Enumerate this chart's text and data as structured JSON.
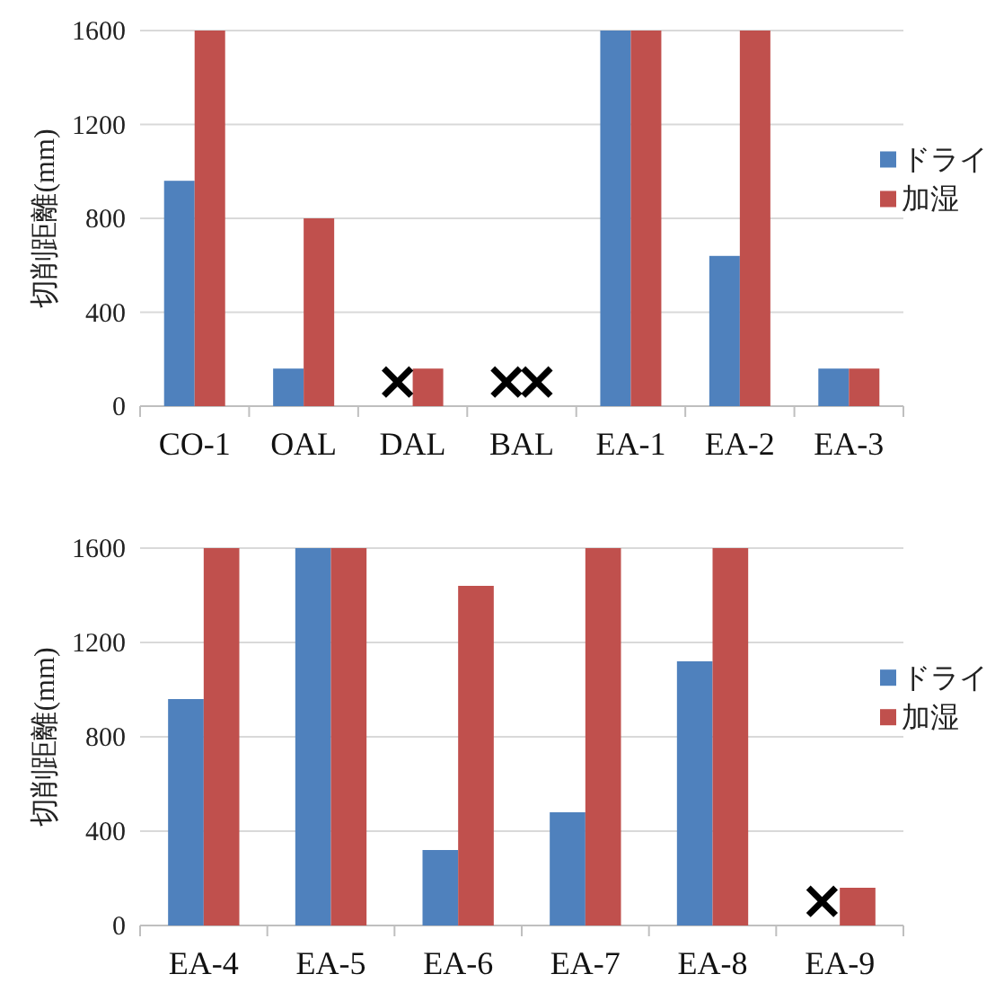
{
  "chart_data": [
    {
      "type": "bar",
      "categories": [
        "CO-1",
        "OAL",
        "DAL",
        "BAL",
        "EA-1",
        "EA-2",
        "EA-3"
      ],
      "series": [
        {
          "name": "ドライ",
          "color": "#4f81bd",
          "values": [
            960,
            160,
            null,
            null,
            1600,
            640,
            160
          ]
        },
        {
          "name": "加湿",
          "color": "#c0504d",
          "values": [
            1600,
            800,
            160,
            null,
            1600,
            1600,
            160
          ]
        }
      ],
      "ylabel": "切削距離(mm)",
      "ylim": [
        0,
        1600
      ],
      "yticks": [
        0,
        400,
        800,
        1200,
        1600
      ],
      "grid": "y",
      "legend": "right",
      "annotations": [
        "×",
        "×",
        "×"
      ]
    },
    {
      "type": "bar",
      "categories": [
        "EA-4",
        "EA-5",
        "EA-6",
        "EA-7",
        "EA-8",
        "EA-9"
      ],
      "series": [
        {
          "name": "ドライ",
          "color": "#4f81bd",
          "values": [
            960,
            1600,
            320,
            480,
            1120,
            null
          ]
        },
        {
          "name": "加湿",
          "color": "#c0504d",
          "values": [
            1600,
            1600,
            1440,
            1600,
            1600,
            160
          ]
        }
      ],
      "ylabel": "切削距離(mm)",
      "ylim": [
        0,
        1600
      ],
      "yticks": [
        0,
        400,
        800,
        1200,
        1600
      ],
      "grid": "y",
      "legend": "right",
      "annotations": [
        "×"
      ]
    }
  ]
}
